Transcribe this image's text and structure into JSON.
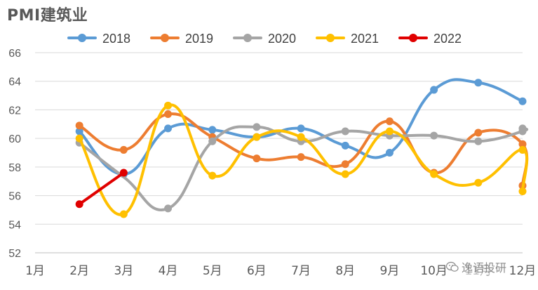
{
  "chart_data": {
    "type": "line",
    "title": "PMI建筑业",
    "categories": [
      "1月",
      "2月",
      "3月",
      "4月",
      "5月",
      "6月",
      "7月",
      "8月",
      "9月",
      "10月",
      "11月",
      "12月"
    ],
    "ylim": [
      52,
      66
    ],
    "yticks": [
      52,
      54,
      56,
      58,
      60,
      62,
      64,
      66
    ],
    "grid": true,
    "legend_position": "top",
    "smooth": true,
    "series": [
      {
        "name": "2018",
        "color": "#5B9BD5",
        "values": [
          null,
          60.5,
          57.5,
          60.7,
          60.6,
          60.1,
          60.7,
          59.5,
          59.0,
          63.4,
          63.9,
          null
        ]
      },
      {
        "name": "2019",
        "color": "#ED7D31",
        "values": [
          null,
          60.9,
          59.2,
          61.7,
          60.1,
          58.6,
          58.7,
          58.2,
          61.2,
          57.6,
          60.4,
          59.6
        ]
      },
      {
        "name": "2020",
        "color": "#A5A5A5",
        "values": [
          null,
          59.7,
          null,
          55.1,
          59.8,
          60.8,
          59.8,
          60.5,
          60.2,
          60.2,
          59.8,
          60.5
        ]
      },
      {
        "name": "2021",
        "color": "#FFC000",
        "values": [
          null,
          60.0,
          54.7,
          62.3,
          57.4,
          60.1,
          60.1,
          57.5,
          60.5,
          57.5,
          56.9,
          59.2
        ]
      },
      {
        "name": "2022",
        "color": "#E00000",
        "values": [
          null,
          55.4,
          57.6,
          null,
          null,
          null,
          null,
          null,
          null,
          null,
          null,
          null
        ]
      }
    ],
    "tail_points": {
      "2018": 62.6,
      "2019": 56.7,
      "2020": 60.7,
      "2021": 56.3
    }
  },
  "watermark": {
    "text": "逸语投研",
    "icon": "wechat-icon"
  }
}
